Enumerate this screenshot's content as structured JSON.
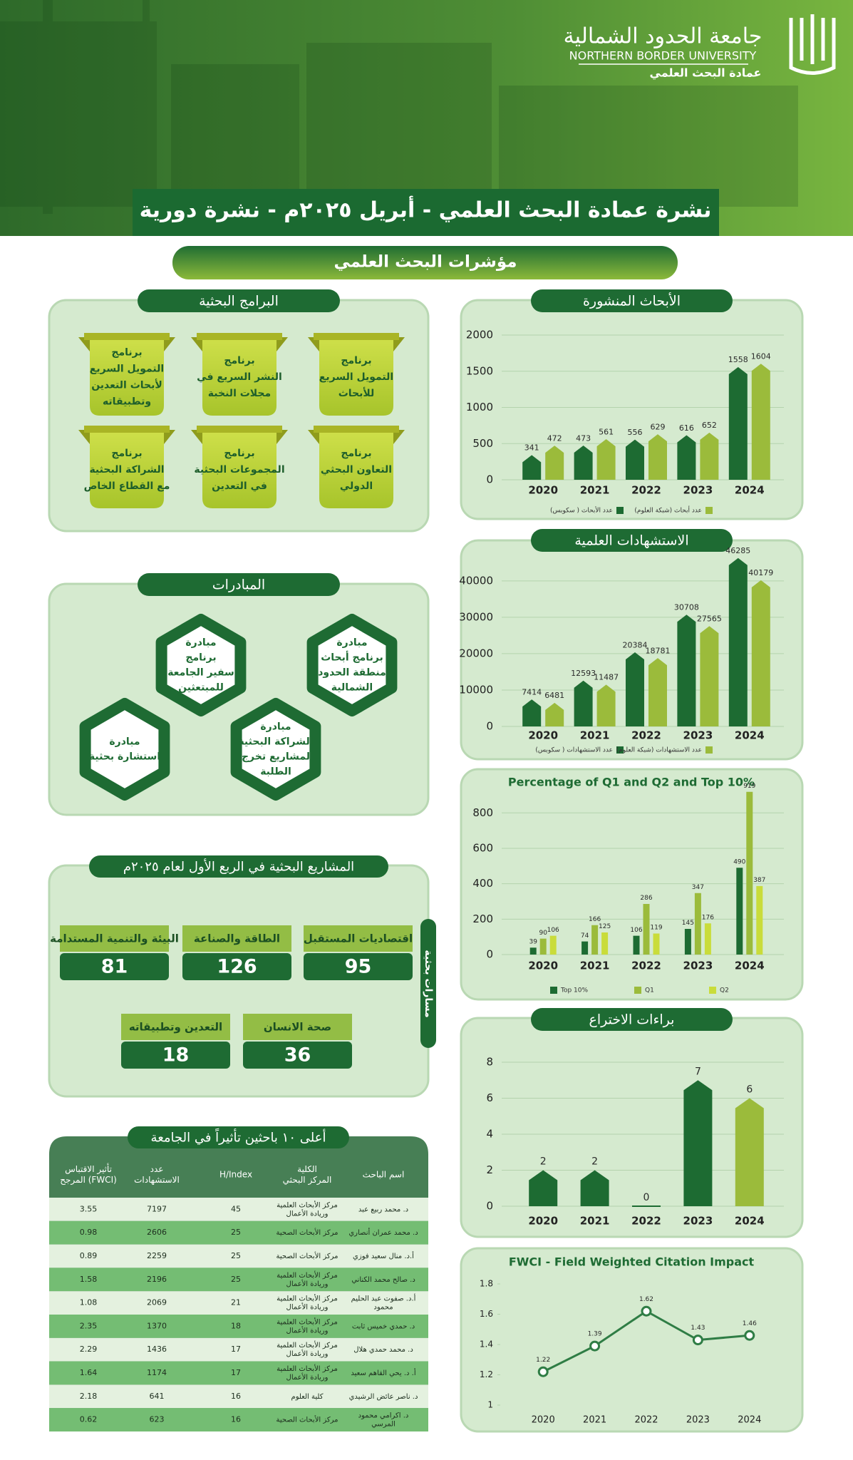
{
  "header": {
    "university_ar": "جامعة الحدود الشمالية",
    "university_en": "NORTHERN BORDER UNIVERSITY",
    "deanship": "عمادة البحث العلمي",
    "title": "نشرة عمادة البحث العلمي - أبريل ٢٠٢٥م - نشرة دورية"
  },
  "indicators_title": "مؤشرات البحث العلمي",
  "programs": {
    "title": "البرامج البحثية",
    "items": [
      [
        "برنامج",
        "التمويل السريع",
        "للأبحاث"
      ],
      [
        "برنامج",
        "النشر السريع في",
        "مجلات النخبة"
      ],
      [
        "برنامج",
        "التمويل السريع",
        "لأبحاث التعدين",
        "وتطبيقاته"
      ],
      [
        "برنامج",
        "التعاون البحثي",
        "الدولي"
      ],
      [
        "برنامج",
        "المجموعات البحثية",
        "في التعدين"
      ],
      [
        "برنامج",
        "الشراكة البحثية",
        "مع القطاع الخاص"
      ]
    ]
  },
  "initiatives": {
    "title": "المبادرات",
    "items": [
      [
        "مبادرة",
        "برنامج أبحاث",
        "منطقة الحدود",
        "الشمالية"
      ],
      [
        "مبادرة",
        "برنامج",
        "سفير الجامعة",
        "للمبتعثين"
      ],
      [
        "مبادرة",
        "الشراكة البحثية",
        "لمشاريع تخرج",
        "الطلبة"
      ],
      [
        "مبادرة",
        "استشارة بحثية"
      ]
    ]
  },
  "projects": {
    "title": "المشاريع البحثية في الربع الأول لعام ٢٠٢٥م",
    "side_label": "مسارات بحثية",
    "items": [
      {
        "name": "اقتصاديات المستقبل",
        "value": 95
      },
      {
        "name": "الطاقة والصناعة",
        "value": 126
      },
      {
        "name": "البيئة والتنمية المستدامة",
        "value": 81
      },
      {
        "name": "صحة الانسان",
        "value": 36
      },
      {
        "name": "التعدين وتطبيقاته",
        "value": 18
      }
    ]
  },
  "top_researchers": {
    "title": "أعلى ١٠ باحثين تأثيراً في الجامعة",
    "columns": [
      [
        "اسم الباحث"
      ],
      [
        "الكلية",
        "المركز البحثي"
      ],
      [
        "H/Index"
      ],
      [
        "عدد",
        "الاستشهادات"
      ],
      [
        "تأثير الاقتباس",
        "المرجح (FWCI)"
      ]
    ],
    "rows": [
      [
        [
          "د. محمد ربيع عبد"
        ],
        [
          "مركز الأبحاث العلمية",
          "وريادة الأعمال"
        ],
        45,
        7197,
        3.55
      ],
      [
        [
          "د. محمد عمران أنصاري"
        ],
        [
          "مركز الأبحاث الصحية"
        ],
        25,
        2606,
        0.98
      ],
      [
        [
          "أ.د. منال سعيد فوزي"
        ],
        [
          "مركز الأبحاث الصحية"
        ],
        25,
        2259,
        0.89
      ],
      [
        [
          "د. صالح محمد الكناني"
        ],
        [
          "مركز الأبحاث العلمية",
          "وريادة الأعمال"
        ],
        25,
        2196,
        1.58
      ],
      [
        [
          "أ.د. صفوت عبد الحليم",
          "محمود"
        ],
        [
          "مركز الأبحاث العلمية",
          "وريادة الأعمال"
        ],
        21,
        2069,
        1.08
      ],
      [
        [
          "د. حمدي خميس ثابت"
        ],
        [
          "مركز الأبحاث العلمية",
          "وريادة الأعمال"
        ],
        18,
        1370,
        2.35
      ],
      [
        [
          "د. محمد حمدي هلال"
        ],
        [
          "مركز الأبحاث العلمية",
          "وريادة الأعمال"
        ],
        17,
        1436,
        2.29
      ],
      [
        [
          "أ. د. يحي القاهم سعيد"
        ],
        [
          "مركز الأبحاث العلمية",
          "وريادة الأعمال"
        ],
        17,
        1174,
        1.64
      ],
      [
        [
          "د. ناصر عائض الرشيدي"
        ],
        [
          "كلية العلوم"
        ],
        16,
        641,
        2.18
      ],
      [
        [
          "د. اكرامي محمود",
          "المرسي"
        ],
        [
          "مركز الأبحاث الصحية"
        ],
        16,
        623,
        0.62
      ]
    ]
  },
  "chart_data": [
    {
      "type": "bar",
      "title": "الأبحاث المنشورة",
      "categories": [
        "2020",
        "2021",
        "2022",
        "2023",
        "2024"
      ],
      "series": [
        {
          "name": "عدد الأبحاث ( سكوبس)",
          "color": "#1d6b32",
          "values": [
            341,
            473,
            556,
            616,
            1558
          ]
        },
        {
          "name": "عدد أبحاث (شبكة العلوم)",
          "color": "#9bbb3b",
          "values": [
            472,
            561,
            629,
            652,
            1604
          ]
        }
      ],
      "ylim": [
        0,
        2000
      ],
      "yticks": [
        0,
        500,
        1000,
        1500,
        2000
      ],
      "grid": true
    },
    {
      "type": "bar",
      "title": "الاستشهادات العلمية",
      "categories": [
        "2020",
        "2021",
        "2022",
        "2023",
        "2024"
      ],
      "series": [
        {
          "name": "عدد الاستشهادات ( سكوبس)",
          "color": "#1d6b32",
          "values": [
            7414,
            12593,
            20384,
            30708,
            46285
          ]
        },
        {
          "name": "عدد الاستشهادات (شبكة العلوم)",
          "color": "#9bbb3b",
          "values": [
            6481,
            11487,
            18781,
            27565,
            40179
          ]
        }
      ],
      "ylim": [
        0,
        48000
      ],
      "yticks": [
        0,
        10000,
        20000,
        30000,
        40000
      ],
      "grid": true
    },
    {
      "type": "bar",
      "title": "Percentage of Q1 and Q2 and Top 10%",
      "categories": [
        "2020",
        "2021",
        "2022",
        "2023",
        "2024"
      ],
      "series": [
        {
          "name": "Top 10%",
          "color": "#1d6b32",
          "values": [
            39,
            74,
            106,
            145,
            490
          ]
        },
        {
          "name": "Q1",
          "color": "#9bbb3b",
          "values": [
            90,
            166,
            286,
            347,
            919
          ]
        },
        {
          "name": "Q2",
          "color": "#c9dc3a",
          "values": [
            106,
            125,
            119,
            176,
            387
          ]
        }
      ],
      "ylim": [
        0,
        950
      ],
      "yticks": [
        0,
        200,
        400,
        600,
        800
      ],
      "grid": true
    },
    {
      "type": "bar",
      "title": "براءات الاختراع",
      "categories": [
        "2020",
        "2021",
        "2022",
        "2023",
        "2024"
      ],
      "values": [
        2,
        2,
        0,
        7,
        6
      ],
      "colors": [
        "#1d6b32",
        "#1d6b32",
        "#1d6b32",
        "#1d6b32",
        "#9bbb3b"
      ],
      "ylim": [
        0,
        8
      ],
      "yticks": [
        0,
        2,
        4,
        6,
        8
      ],
      "grid": true
    },
    {
      "type": "line",
      "title": "FWCI - Field Weighted Citation Impact",
      "categories": [
        "2020",
        "2021",
        "2022",
        "2023",
        "2024"
      ],
      "values": [
        1.22,
        1.39,
        1.62,
        1.43,
        1.46
      ],
      "color": "#2f7d45",
      "ylim": [
        1,
        1.8
      ],
      "yticks": [
        1,
        1.2,
        1.4,
        1.6,
        1.8
      ],
      "grid": false
    }
  ]
}
